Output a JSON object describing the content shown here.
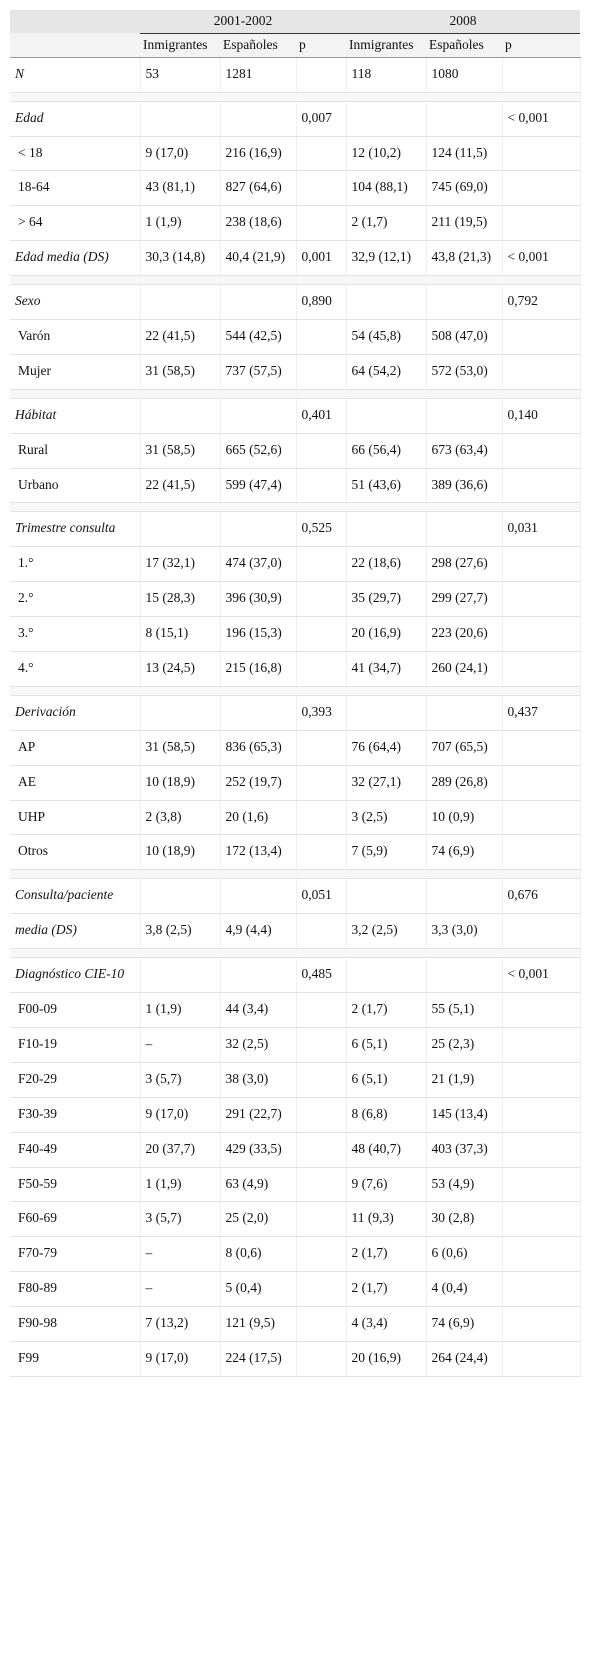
{
  "table": {
    "header": {
      "periods": [
        "2001-2002",
        "2008"
      ],
      "columns": [
        "Inmigrantes",
        "Españoles",
        "p",
        "Inmigrantes",
        "Españoles",
        "p"
      ]
    },
    "groups": [
      {
        "rows": [
          {
            "cells": [
              "N",
              "53",
              "1281",
              null,
              "118",
              "1080",
              null
            ]
          }
        ]
      },
      {
        "rows": [
          {
            "cells": [
              "Edad",
              null,
              null,
              "0,007",
              null,
              null,
              "< 0,001"
            ],
            "items": [
              [
                "< 18",
                "9 (17,0)",
                "216 (16,9)",
                null,
                "12 (10,2)",
                "124 (11,5)",
                null
              ],
              [
                "18-64",
                "43 (81,1)",
                "827 (64,6)",
                null,
                "104 (88,1)",
                "745 (69,0)",
                null
              ],
              [
                "> 64",
                "1 (1,9)",
                "238 (18,6)",
                null,
                "2 (1,7)",
                "211 (19,5)",
                null
              ]
            ]
          },
          {
            "cells": [
              "Edad media (DS)",
              "30,3 (14,8)",
              "40,4 (21,9)",
              "0,001",
              "32,9 (12,1)",
              "43,8 (21,3)",
              "< 0,001"
            ]
          }
        ]
      },
      {
        "rows": [
          {
            "cells": [
              "Sexo",
              null,
              null,
              "0,890",
              null,
              null,
              "0,792"
            ],
            "items": [
              [
                "Varón",
                "22 (41,5)",
                "544 (42,5)",
                null,
                "54 (45,8)",
                "508 (47,0)",
                null
              ],
              [
                "Mujer",
                "31 (58,5)",
                "737 (57,5)",
                null,
                "64 (54,2)",
                "572 (53,0)",
                null
              ]
            ]
          }
        ]
      },
      {
        "rows": [
          {
            "cells": [
              "Hábitat",
              null,
              null,
              "0,401",
              null,
              null,
              "0,140"
            ],
            "items": [
              [
                "Rural",
                "31 (58,5)",
                "665 (52,6)",
                null,
                "66 (56,4)",
                "673 (63,4)",
                null
              ],
              [
                "Urbano",
                "22 (41,5)",
                "599 (47,4)",
                null,
                "51 (43,6)",
                "389 (36,6)",
                null
              ]
            ]
          }
        ]
      },
      {
        "rows": [
          {
            "cells": [
              "Trimestre consulta",
              null,
              null,
              "0,525",
              null,
              null,
              "0,031"
            ],
            "items": [
              [
                "1.°",
                "17 (32,1)",
                "474 (37,0)",
                null,
                "22 (18,6)",
                "298 (27,6)",
                null
              ],
              [
                "2.°",
                "15 (28,3)",
                "396 (30,9)",
                null,
                "35 (29,7)",
                "299 (27,7)",
                null
              ],
              [
                "3.°",
                "8 (15,1)",
                "196 (15,3)",
                null,
                "20 (16,9)",
                "223 (20,6)",
                null
              ],
              [
                "4.°",
                "13 (24,5)",
                "215 (16,8)",
                null,
                "41 (34,7)",
                "260 (24,1)",
                null
              ]
            ]
          }
        ]
      },
      {
        "rows": [
          {
            "cells": [
              "Derivación",
              null,
              null,
              "0,393",
              null,
              null,
              "0,437"
            ],
            "items": [
              [
                "AP",
                "31 (58,5)",
                "836 (65,3)",
                null,
                "76 (64,4)",
                "707 (65,5)",
                null
              ],
              [
                "AE",
                "10 (18,9)",
                "252 (19,7)",
                null,
                "32 (27,1)",
                "289 (26,8)",
                null
              ],
              [
                "UHP",
                "2 (3,8)",
                "20 (1,6)",
                null,
                "3 (2,5)",
                "10 (0,9)",
                null
              ],
              [
                "Otros",
                "10 (18,9)",
                "172 (13,4)",
                null,
                "7 (5,9)",
                "74 (6,9)",
                null
              ]
            ]
          }
        ]
      },
      {
        "rows": [
          {
            "cells": [
              "Consulta/paciente",
              null,
              null,
              "0,051",
              null,
              null,
              "0,676"
            ]
          },
          {
            "cells": [
              "media (DS)",
              "3,8 (2,5)",
              "4,9 (4,4)",
              null,
              "3,2 (2,5)",
              "3,3 (3,0)",
              null
            ]
          }
        ]
      },
      {
        "rows": [
          {
            "cells": [
              "Diagnóstico CIE-10",
              null,
              null,
              "0,485",
              null,
              null,
              "< 0,001"
            ],
            "items": [
              [
                "F00-09",
                "1 (1,9)",
                "44 (3,4)",
                null,
                "2 (1,7)",
                "55 (5,1)",
                null
              ],
              [
                "F10-19",
                "–",
                "32 (2,5)",
                null,
                "6 (5,1)",
                "25 (2,3)",
                null
              ],
              [
                "F20-29",
                "3 (5,7)",
                "38 (3,0)",
                null,
                "6 (5,1)",
                "21 (1,9)",
                null
              ],
              [
                "F30-39",
                "9 (17,0)",
                "291 (22,7)",
                null,
                "8 (6,8)",
                "145 (13,4)",
                null
              ],
              [
                "F40-49",
                "20 (37,7)",
                "429 (33,5)",
                null,
                "48 (40,7)",
                "403 (37,3)",
                null
              ],
              [
                "F50-59",
                "1 (1,9)",
                "63 (4,9)",
                null,
                "9 (7,6)",
                "53 (4,9)",
                null
              ],
              [
                "F60-69",
                "3 (5,7)",
                "25 (2,0)",
                null,
                "11 (9,3)",
                "30 (2,8)",
                null
              ],
              [
                "F70-79",
                "–",
                "8 (0,6)",
                null,
                "2 (1,7)",
                "6 (0,6)",
                null
              ],
              [
                "F80-89",
                "–",
                "5 (0,4)",
                null,
                "2 (1,7)",
                "4 (0,4)",
                null
              ],
              [
                "F90-98",
                "7 (13,2)",
                "121 (9,5)",
                null,
                "4 (3,4)",
                "74 (6,9)",
                null
              ],
              [
                "F99",
                "9 (17,0)",
                "224 (17,5)",
                null,
                "20 (16,9)",
                "264 (24,4)",
                null
              ]
            ]
          }
        ]
      }
    ]
  }
}
